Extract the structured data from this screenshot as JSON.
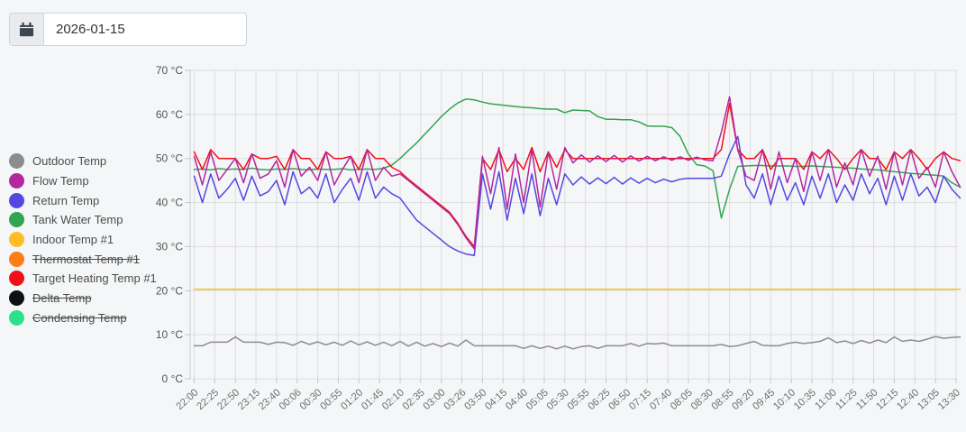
{
  "datebar": {
    "date_value": "2026-01-15",
    "icon": "calendar-icon"
  },
  "legend": {
    "position": "left",
    "items": [
      {
        "label": "Outdoor Temp",
        "color": "#8d8d8d",
        "enabled": true
      },
      {
        "label": "Flow Temp",
        "color": "#b3279f",
        "enabled": true
      },
      {
        "label": "Return Temp",
        "color": "#5547e0",
        "enabled": true
      },
      {
        "label": "Tank Water Temp",
        "color": "#33a551",
        "enabled": true
      },
      {
        "label": "Indoor Temp #1",
        "color": "#fcbe24",
        "enabled": true
      },
      {
        "label": "Thermostat Temp #1",
        "color": "#fd7e14",
        "enabled": false
      },
      {
        "label": "Target Heating Temp #1",
        "color": "#f40e18",
        "enabled": true
      },
      {
        "label": "Delta Temp",
        "color": "#0d1111",
        "enabled": false
      },
      {
        "label": "Condensing Temp",
        "color": "#2ee08c",
        "enabled": false
      }
    ]
  },
  "chart_data": {
    "type": "line",
    "title": "",
    "xlabel": "",
    "ylabel": "",
    "y_unit": "°C",
    "ylim": [
      0,
      70
    ],
    "grid": true,
    "y_ticks": [
      "0 °C",
      "10 °C",
      "20 °C",
      "30 °C",
      "40 °C",
      "50 °C",
      "60 °C",
      "70 °C"
    ],
    "x_ticks": [
      "22:00",
      "22:25",
      "22:50",
      "23:15",
      "23:40",
      "00:06",
      "00:30",
      "00:55",
      "01:20",
      "01:45",
      "02:10",
      "02:35",
      "03:00",
      "03:26",
      "03:50",
      "04:15",
      "04:40",
      "05:05",
      "05:30",
      "05:55",
      "06:25",
      "06:50",
      "07:15",
      "07:40",
      "08:05",
      "08:30",
      "08:55",
      "09:20",
      "09:45",
      "10:10",
      "10:35",
      "11:00",
      "11:25",
      "11:50",
      "12:15",
      "12:40",
      "13:05",
      "13:30"
    ],
    "sample_step_minutes": 10,
    "series": [
      {
        "name": "Outdoor Temp",
        "color": "#8d8d8d",
        "values": [
          7.5,
          7.5,
          8.3,
          8.3,
          8.3,
          9.5,
          8.3,
          8.3,
          8.3,
          7.8,
          8.3,
          8.2,
          7.6,
          8.5,
          7.8,
          8.4,
          7.7,
          8.3,
          7.6,
          8.6,
          7.7,
          8.4,
          7.6,
          8.3,
          7.5,
          8.5,
          7.4,
          8.3,
          7.4,
          8,
          7.3,
          8.1,
          7.4,
          8.8,
          7.5,
          7.5,
          7.5,
          7.5,
          7.5,
          7.5,
          6.9,
          7.5,
          6.9,
          7.4,
          6.8,
          7.4,
          6.8,
          7.3,
          7.5,
          6.9,
          7.5,
          7.5,
          7.5,
          8,
          7.4,
          8,
          7.9,
          8.1,
          7.5,
          7.5,
          7.5,
          7.5,
          7.5,
          7.5,
          7.8,
          7.3,
          7.5,
          8,
          8.5,
          7.6,
          7.5,
          7.5,
          8,
          8.3,
          8,
          8.2,
          8.5,
          9.3,
          8.2,
          8.6,
          8,
          8.7,
          8.1,
          8.8,
          8.2,
          9.5,
          8.5,
          8.8,
          8.5,
          9,
          9.6,
          9.2,
          9.4,
          9.5
        ]
      },
      {
        "name": "Indoor Temp #1",
        "color": "#fcbe24",
        "constant": 20.3
      },
      {
        "name": "Tank Water Temp",
        "color": "#33a551",
        "values": [
          47.5,
          47.6,
          47.4,
          47.7,
          47.5,
          47.6,
          47.5,
          47.8,
          47.5,
          47.4,
          47.6,
          47.5,
          47.7,
          47.5,
          47.4,
          47.6,
          47.5,
          47.5,
          47.7,
          47.4,
          47.5,
          47.6,
          47.5,
          47.8,
          48.5,
          50,
          51.8,
          53.5,
          55.5,
          57.5,
          59.5,
          61.2,
          62.6,
          63.5,
          63.3,
          62.8,
          62.4,
          62.2,
          62,
          61.8,
          61.6,
          61.5,
          61.3,
          61.2,
          61.2,
          60.4,
          61,
          60.9,
          60.8,
          59.5,
          58.9,
          58.9,
          58.8,
          58.8,
          58.3,
          57.4,
          57.3,
          57.3,
          57,
          55,
          51,
          48.6,
          48.3,
          47.2,
          36.5,
          43,
          48.2,
          48.3,
          48.4,
          48.4,
          48.3,
          48.3,
          48.3,
          48.2,
          48.2,
          48.3,
          48.2,
          48.1,
          48,
          47.9,
          47.8,
          47.6,
          47.5,
          47.4,
          47.2,
          47,
          46.8,
          46.6,
          46.5,
          46.3,
          46.2,
          46,
          44.5,
          43.5
        ]
      },
      {
        "name": "Return Temp",
        "color": "#5547e0",
        "values": [
          46,
          40,
          46.5,
          41,
          43,
          45.5,
          40.5,
          46,
          41.5,
          42.5,
          45,
          39.5,
          47,
          42,
          43.5,
          41,
          46.5,
          40,
          43,
          45.5,
          40.5,
          47,
          41,
          43.5,
          42,
          41,
          38.5,
          36,
          34.5,
          33,
          31.5,
          30,
          29,
          28.3,
          28,
          46.5,
          38.5,
          47,
          36,
          45.5,
          37.5,
          46.5,
          37,
          45.5,
          39.5,
          46.5,
          44,
          45.8,
          44.2,
          45.6,
          44.3,
          45.7,
          44.2,
          45.6,
          44.4,
          45.5,
          44.5,
          45.3,
          44.7,
          45.3,
          45.5,
          45.5,
          45.5,
          45.5,
          46,
          51,
          55,
          44,
          41,
          46.5,
          39.5,
          46,
          40.5,
          44.5,
          39.5,
          46,
          41,
          46.5,
          40,
          44,
          40.5,
          46.5,
          42,
          45.5,
          39.5,
          46,
          40.5,
          46.5,
          41.5,
          43.5,
          40,
          46,
          43,
          41
        ]
      },
      {
        "name": "Target Heating Temp #1",
        "color": "#f40e18",
        "values": [
          51.5,
          47.5,
          52,
          50,
          50,
          50,
          47.5,
          51,
          50,
          50,
          50.5,
          47.5,
          52,
          50,
          50,
          47.5,
          51.5,
          50,
          50,
          50.5,
          47.5,
          52,
          50,
          50,
          48,
          47,
          45.3,
          43.8,
          42.3,
          40.8,
          39.3,
          37.8,
          35.3,
          32.3,
          30,
          50,
          47.5,
          52,
          47,
          50,
          47.5,
          52.5,
          47,
          51.5,
          48,
          52,
          50,
          50,
          50,
          50,
          50,
          50,
          50,
          50,
          50,
          50,
          50,
          50,
          50,
          50,
          50,
          50,
          50,
          50,
          52,
          62.5,
          52,
          50,
          50,
          52,
          47.5,
          50,
          50,
          50,
          47.5,
          51.5,
          50,
          52,
          50,
          47.5,
          50,
          52,
          50,
          50,
          47.5,
          51.5,
          50,
          52,
          50,
          47.5,
          50,
          51.5,
          50,
          49.5
        ]
      },
      {
        "name": "Flow Temp",
        "color": "#b3279f",
        "values": [
          50.5,
          44,
          51.5,
          45,
          47.5,
          50,
          44.5,
          51,
          45.5,
          46.5,
          49.5,
          43.5,
          52,
          46,
          48,
          45,
          51.5,
          44,
          47.5,
          50.5,
          44.5,
          52,
          45,
          48,
          46,
          46.5,
          45,
          43.5,
          42,
          40.5,
          39,
          37.5,
          35,
          32,
          29.5,
          50.5,
          42,
          52.5,
          38.5,
          51,
          40,
          52,
          39,
          51.5,
          43,
          52.5,
          49,
          50.8,
          49.2,
          50.6,
          49.3,
          50.7,
          49.2,
          50.6,
          49.4,
          50.5,
          49.5,
          50.4,
          49.6,
          50.4,
          49.6,
          50.3,
          49.7,
          49.5,
          56,
          64,
          52,
          46,
          45,
          52,
          43,
          51.5,
          44.5,
          50,
          42.5,
          51.5,
          45,
          52,
          43.5,
          49,
          44,
          52,
          46,
          50.5,
          43,
          51.5,
          44,
          52,
          45.5,
          48,
          43.5,
          51.5,
          47,
          43.5
        ]
      }
    ]
  }
}
